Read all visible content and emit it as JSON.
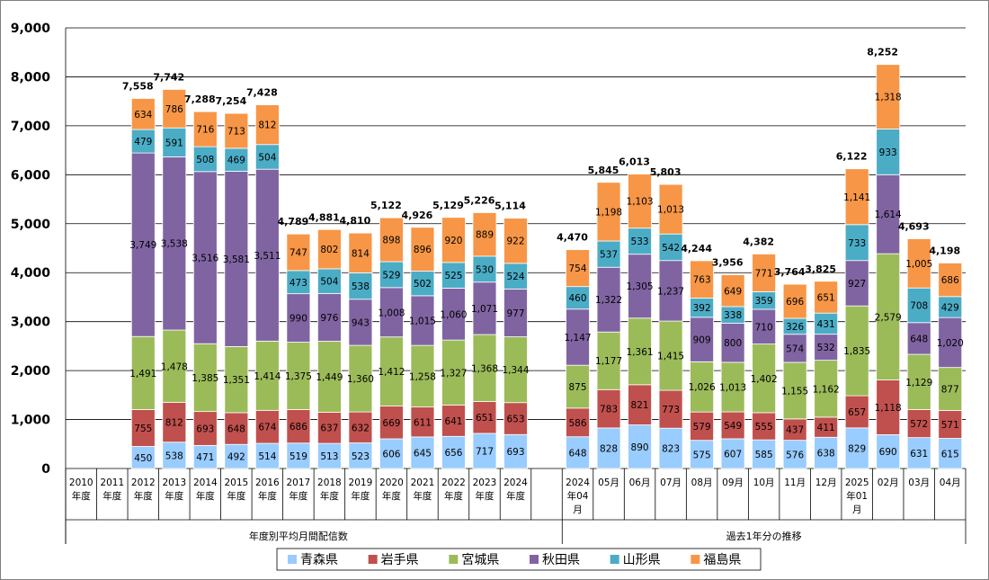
{
  "chart_data": {
    "type": "bar",
    "stacked": true,
    "ylim": [
      0,
      9000
    ],
    "yticks": [
      "0",
      "1,000",
      "2,000",
      "3,000",
      "4,000",
      "5,000",
      "6,000",
      "7,000",
      "8,000",
      "9,000"
    ],
    "grid": true,
    "legend_position": "bottom",
    "categories": [
      [
        "2010",
        "年度"
      ],
      [
        "2011",
        "年度"
      ],
      [
        "2012",
        "年度"
      ],
      [
        "2013",
        "年度"
      ],
      [
        "2014",
        "年度"
      ],
      [
        "2015",
        "年度"
      ],
      [
        "2016",
        "年度"
      ],
      [
        "2017",
        "年度"
      ],
      [
        "2018",
        "年度"
      ],
      [
        "2019",
        "年度"
      ],
      [
        "2020",
        "年度"
      ],
      [
        "2021",
        "年度"
      ],
      [
        "2022",
        "年度"
      ],
      [
        "2023",
        "年度"
      ],
      [
        "2024",
        "年度"
      ],
      [],
      [
        "2024",
        "年04",
        "月"
      ],
      [
        "05月"
      ],
      [
        "06月"
      ],
      [
        "07月"
      ],
      [
        "08月"
      ],
      [
        "09月"
      ],
      [
        "10月"
      ],
      [
        "11月"
      ],
      [
        "12月"
      ],
      [
        "2025",
        "年01",
        "月"
      ],
      [
        "02月"
      ],
      [
        "03月"
      ],
      [
        "04月"
      ]
    ],
    "groups": [
      {
        "label": "年度別平均月間配信数"
      },
      {
        "label": "過去1年分の推移"
      }
    ],
    "series": [
      {
        "name": "青森県",
        "color": "#99ccff",
        "values": [
          null,
          null,
          450,
          538,
          471,
          492,
          514,
          519,
          513,
          523,
          606,
          645,
          656,
          717,
          693,
          null,
          648,
          828,
          890,
          823,
          575,
          607,
          585,
          576,
          638,
          829,
          690,
          631,
          615
        ]
      },
      {
        "name": "岩手県",
        "color": "#c0504d",
        "values": [
          null,
          null,
          755,
          812,
          693,
          648,
          674,
          686,
          637,
          632,
          669,
          611,
          641,
          651,
          653,
          null,
          586,
          783,
          821,
          773,
          579,
          549,
          555,
          437,
          411,
          657,
          1118,
          572,
          571
        ]
      },
      {
        "name": "宮城県",
        "color": "#9bbb59",
        "values": [
          null,
          null,
          1491,
          1478,
          1385,
          1351,
          1414,
          1375,
          1449,
          1360,
          1412,
          1258,
          1327,
          1368,
          1344,
          null,
          875,
          1177,
          1361,
          1415,
          1026,
          1013,
          1402,
          1155,
          1162,
          1835,
          2579,
          1129,
          877
        ]
      },
      {
        "name": "秋田県",
        "color": "#8064a2",
        "values": [
          null,
          null,
          3749,
          3538,
          3516,
          3581,
          3511,
          990,
          976,
          943,
          1008,
          1015,
          1060,
          1071,
          977,
          null,
          1147,
          1322,
          1305,
          1237,
          909,
          800,
          710,
          574,
          532,
          927,
          1614,
          648,
          1020
        ]
      },
      {
        "name": "山形県",
        "color": "#4bacc6",
        "values": [
          null,
          null,
          479,
          591,
          508,
          469,
          504,
          473,
          504,
          538,
          529,
          502,
          525,
          530,
          524,
          null,
          460,
          537,
          533,
          542,
          392,
          338,
          359,
          326,
          431,
          733,
          933,
          708,
          429
        ]
      },
      {
        "name": "福島県",
        "color": "#f79646",
        "values": [
          null,
          null,
          634,
          786,
          716,
          713,
          812,
          747,
          802,
          814,
          898,
          896,
          920,
          889,
          922,
          null,
          754,
          1198,
          1103,
          1013,
          763,
          649,
          771,
          696,
          651,
          1141,
          1318,
          1005,
          686
        ]
      }
    ],
    "totals": [
      null,
      null,
      "7,558",
      "7,742",
      "7,288",
      "7,254",
      "7,428",
      "4,789",
      "4,881",
      "4,810",
      "5,122",
      "4,926",
      "5,129",
      "5,226",
      "5,114",
      null,
      "4,470",
      "5,845",
      "6,013",
      "5,803",
      "4,244",
      "3,956",
      "4,382",
      "3,764",
      "3,825",
      "6,122",
      "8,252",
      "4,693",
      "4,198"
    ]
  },
  "colors": {
    "grid": "#000000",
    "frame": "#7f7f7f",
    "bar_edge": "#ffffff"
  }
}
